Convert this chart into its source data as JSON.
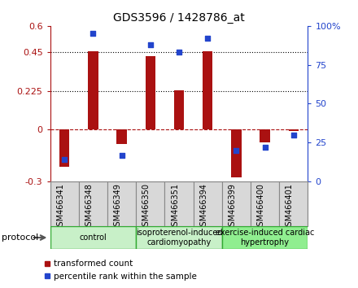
{
  "title": "GDS3596 / 1428786_at",
  "samples": [
    "GSM466341",
    "GSM466348",
    "GSM466349",
    "GSM466350",
    "GSM466351",
    "GSM466394",
    "GSM466399",
    "GSM466400",
    "GSM466401"
  ],
  "red_values": [
    -0.215,
    0.455,
    -0.085,
    0.425,
    0.228,
    0.455,
    -0.275,
    -0.075,
    -0.01
  ],
  "blue_values_pct": [
    14,
    95,
    17,
    88,
    83,
    92,
    20,
    22,
    30
  ],
  "ylim_left": [
    -0.3,
    0.6
  ],
  "ylim_right": [
    0,
    100
  ],
  "yticks_left": [
    -0.3,
    0.0,
    0.225,
    0.45,
    0.6
  ],
  "yticks_left_labels": [
    "-0.3",
    "0",
    "0.225",
    "0.45",
    "0.6"
  ],
  "yticks_right": [
    0,
    25,
    50,
    75,
    100
  ],
  "yticks_right_labels": [
    "0",
    "25",
    "50",
    "75",
    "100%"
  ],
  "hlines": [
    0.225,
    0.45
  ],
  "zero_line": 0.0,
  "groups": [
    {
      "label": "control",
      "samples": [
        0,
        1,
        2
      ],
      "color": "#c8f0c8"
    },
    {
      "label": "isoproterenol-induced\ncardiomyopathy",
      "samples": [
        3,
        4,
        5
      ],
      "color": "#c8f0c8"
    },
    {
      "label": "exercise-induced cardiac\nhypertrophy",
      "samples": [
        6,
        7,
        8
      ],
      "color": "#90ee90"
    }
  ],
  "bar_width": 0.35,
  "red_color": "#aa1111",
  "blue_color": "#2244cc",
  "bg_color": "#ffffff",
  "plot_bg": "#ffffff",
  "legend_items": [
    "transformed count",
    "percentile rank within the sample"
  ],
  "protocol_label": "protocol",
  "group_label_fontsize": 7,
  "sample_label_fontsize": 7
}
